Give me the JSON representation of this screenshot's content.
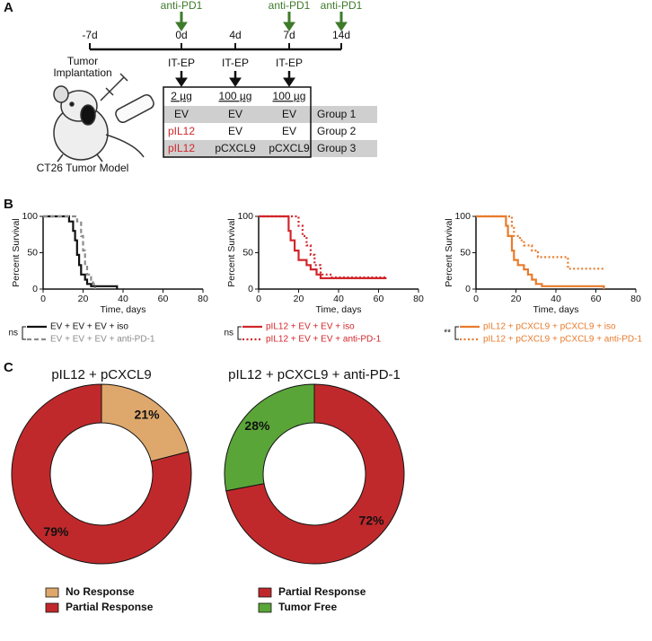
{
  "panel_labels": [
    "A",
    "B",
    "C"
  ],
  "schematic": {
    "timepoints": [
      "-7d",
      "0d",
      "4d",
      "7d",
      "14d"
    ],
    "treatments": [
      "anti-PD1",
      "anti-PD1",
      "anti-PD1"
    ],
    "implantation": [
      "Tumor",
      "Implantation"
    ],
    "electroporation": [
      "IT-EP",
      "IT-EP",
      "IT-EP"
    ],
    "doses": [
      "2 µg",
      "100 µg",
      "100 µg"
    ],
    "groups": [
      {
        "plasmids": [
          "EV",
          "EV",
          "EV"
        ],
        "label": "Group 1"
      },
      {
        "plasmids": [
          "pIL12",
          "EV",
          "EV"
        ],
        "label": "Group 2"
      },
      {
        "plasmids": [
          "pIL12",
          "pCXCL9",
          "pCXCL9"
        ],
        "label": "Group 3"
      }
    ],
    "model": "CT26 Tumor Model"
  },
  "chart_data": [
    {
      "type": "survival",
      "ylabel": "Percent Survival",
      "xlabel": "Time, days",
      "xlim": [
        0,
        80
      ],
      "ylim": [
        0,
        100
      ],
      "xticks": [
        0,
        20,
        40,
        60,
        80
      ],
      "yticks": [
        0,
        50,
        100
      ],
      "significance": "ns",
      "series": [
        {
          "name": "EV + EV + EV + iso",
          "color": "#111111",
          "dash": "solid",
          "x": [
            0,
            13,
            13,
            15,
            15,
            16,
            16,
            17,
            17,
            18,
            18,
            19,
            19,
            21,
            21,
            22,
            22,
            24,
            24,
            37,
            37
          ],
          "values": [
            100,
            100,
            93,
            93,
            80,
            80,
            67,
            67,
            47,
            47,
            33,
            33,
            20,
            20,
            13,
            13,
            7,
            7,
            4,
            4,
            0
          ]
        },
        {
          "name": "EV + EV + EV + anti-PD-1",
          "color": "#8c8c8c",
          "dash": "dashed",
          "x": [
            0,
            17,
            17,
            19,
            19,
            20,
            20,
            21,
            21,
            22,
            22,
            24,
            24,
            25,
            25,
            26,
            26
          ],
          "values": [
            100,
            100,
            93,
            93,
            73,
            73,
            53,
            53,
            33,
            33,
            20,
            20,
            13,
            13,
            7,
            7,
            0
          ]
        }
      ]
    },
    {
      "type": "survival",
      "ylabel": "Percent Survival",
      "xlabel": "Time, days",
      "xlim": [
        0,
        80
      ],
      "ylim": [
        0,
        100
      ],
      "xticks": [
        0,
        20,
        40,
        60,
        80
      ],
      "yticks": [
        0,
        50,
        100
      ],
      "significance": "ns",
      "series": [
        {
          "name": "pIL12 + EV + EV + iso",
          "color": "#d1262a",
          "dash": "solid",
          "x": [
            0,
            15,
            15,
            16,
            16,
            18,
            18,
            20,
            20,
            24,
            24,
            26,
            26,
            29,
            29,
            31,
            31,
            64
          ],
          "values": [
            100,
            100,
            80,
            80,
            67,
            67,
            53,
            53,
            40,
            40,
            33,
            33,
            27,
            27,
            20,
            20,
            15,
            15
          ]
        },
        {
          "name": "pIL12 + EV + EV + anti-PD-1",
          "color": "#d1262a",
          "dash": "dotted",
          "x": [
            0,
            20,
            20,
            22,
            22,
            24,
            24,
            26,
            26,
            28,
            28,
            31,
            31,
            36,
            36,
            64
          ],
          "values": [
            100,
            100,
            87,
            87,
            73,
            73,
            60,
            60,
            47,
            47,
            33,
            33,
            20,
            20,
            16,
            16
          ]
        }
      ]
    },
    {
      "type": "survival",
      "ylabel": "Percent Survival",
      "xlabel": "Time, days",
      "xlim": [
        0,
        80
      ],
      "ylim": [
        0,
        100
      ],
      "xticks": [
        0,
        20,
        40,
        60,
        80
      ],
      "yticks": [
        0,
        50,
        100
      ],
      "significance": "**",
      "series": [
        {
          "name": "pIL12 + pCXCL9 + pCXCL9 + iso",
          "color": "#e87b2c",
          "dash": "solid",
          "x": [
            0,
            15,
            15,
            16,
            16,
            18,
            18,
            19,
            19,
            21,
            21,
            24,
            24,
            26,
            26,
            28,
            28,
            30,
            30,
            33,
            33,
            64,
            64
          ],
          "values": [
            100,
            100,
            87,
            87,
            73,
            73,
            53,
            53,
            40,
            40,
            33,
            33,
            27,
            27,
            20,
            20,
            13,
            13,
            7,
            7,
            4,
            4,
            0
          ]
        },
        {
          "name": "pIL12 + pCXCL9 + pCXCL9 + anti-PD-1",
          "color": "#e87b2c",
          "dash": "dotted",
          "x": [
            0,
            18,
            18,
            19,
            19,
            22,
            22,
            24,
            24,
            28,
            28,
            31,
            31,
            46,
            46,
            64
          ],
          "values": [
            100,
            100,
            87,
            87,
            73,
            73,
            67,
            67,
            60,
            60,
            53,
            53,
            44,
            44,
            28,
            28
          ]
        }
      ]
    },
    {
      "type": "donut",
      "title": "pIL12 + pCXCL9",
      "categories": [
        "No Response",
        "Partial Response"
      ],
      "values": [
        21,
        79
      ],
      "value_labels": [
        "21%",
        "79%"
      ],
      "colors": [
        "#dea86c",
        "#c0292b"
      ]
    },
    {
      "type": "donut",
      "title": "pIL12 + pCXCL9 + anti-PD-1",
      "categories": [
        "Partial Response",
        "Tumor Free"
      ],
      "values": [
        72,
        28
      ],
      "value_labels": [
        "72%",
        "28%"
      ],
      "colors": [
        "#c0292b",
        "#5aa538"
      ]
    }
  ]
}
